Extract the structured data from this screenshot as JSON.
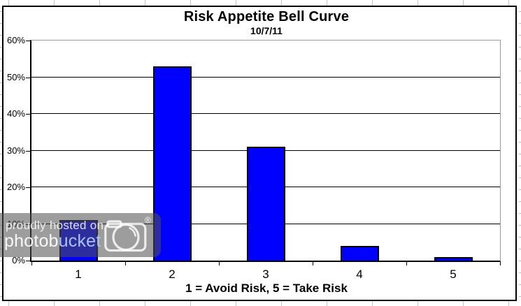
{
  "chart_data": {
    "type": "bar",
    "title": "Risk Appetite Bell Curve",
    "subtitle": "10/7/11",
    "categories": [
      "1",
      "2",
      "3",
      "4",
      "5"
    ],
    "values": [
      11,
      53,
      31,
      4,
      1
    ],
    "xlabel": "1 = Avoid Risk, 5 = Take Risk",
    "ylabel": "",
    "ylim": [
      0,
      60
    ],
    "ytick_step": 10,
    "ytick_labels": [
      "0%",
      "10%",
      "20%",
      "30%",
      "40%",
      "50%",
      "60%"
    ],
    "legend": "none",
    "grid": "horizontal-black",
    "bar_color": "#0000ff",
    "bar_border_color": "#000000",
    "plot_border_color": "#9a9a9a"
  },
  "watermark": {
    "line1": "proudly hosted on",
    "brand_white": "photob",
    "brand_blue": "ucket",
    "registered_symbol": "®",
    "camera_icon": "camera-icon",
    "band_color": "rgba(80,80,80,0.56)",
    "text_color": "rgba(255,255,255,0.85)",
    "brand_white_color": "rgba(255,255,255,0.92)",
    "brand_blue_color": "#a9c4ee"
  }
}
